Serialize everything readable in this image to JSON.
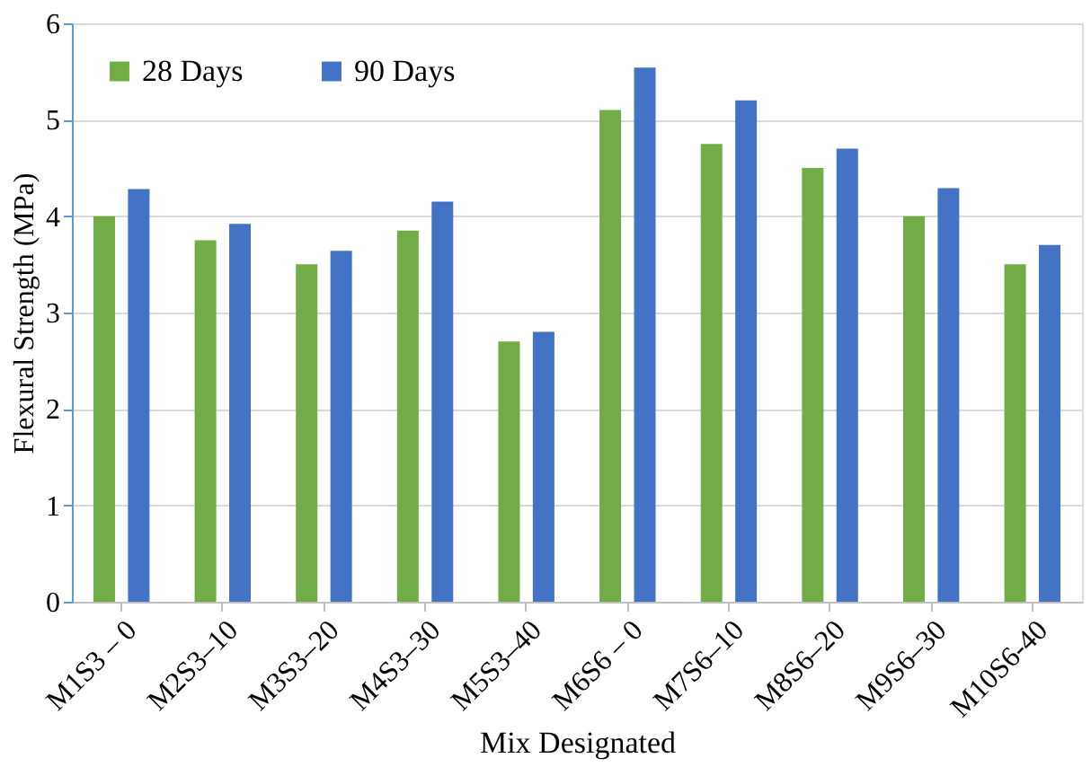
{
  "chart_data": {
    "type": "bar",
    "xlabel": "Mix Designated",
    "ylabel": "Flexural Strength (MPa)",
    "categories": [
      "M1S3 – 0",
      "M2S3–10",
      "M3S3–20",
      "M4S3–30",
      "M5S3–40",
      "M6S6 – 0",
      "M7S6–10",
      "M8S6–20",
      "M9S6–30",
      "M10S6-40"
    ],
    "series": [
      {
        "name": "28 Days",
        "color": "#70ad47",
        "values": [
          4.0,
          3.75,
          3.5,
          3.85,
          2.7,
          5.1,
          4.75,
          4.5,
          4.0,
          3.5
        ]
      },
      {
        "name": "90 Days",
        "color": "#4472c4",
        "values": [
          4.28,
          3.92,
          3.64,
          4.15,
          2.8,
          5.54,
          5.2,
          4.7,
          4.29,
          3.7
        ]
      }
    ],
    "ylim": [
      0,
      6
    ],
    "yticks": [
      0,
      1,
      2,
      3,
      4,
      5,
      6
    ],
    "grid": "y",
    "legend": "top left"
  }
}
